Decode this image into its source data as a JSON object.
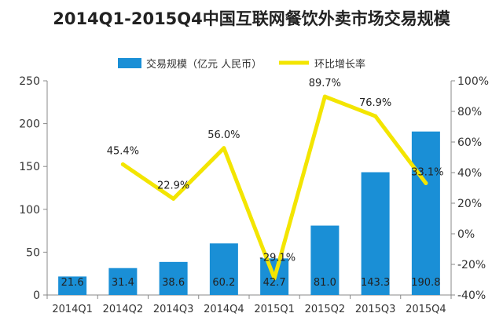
{
  "chart_data": {
    "type": "bar",
    "title": "2014Q1-2015Q4中国互联网餐饮外卖市场交易规模",
    "categories": [
      "2014Q1",
      "2014Q2",
      "2014Q3",
      "2014Q4",
      "2015Q1",
      "2015Q2",
      "2015Q3",
      "2015Q4"
    ],
    "series": [
      {
        "name": "交易规模（亿元 人民币）",
        "type": "bar",
        "axis": "left",
        "values": [
          21.6,
          31.4,
          38.6,
          60.2,
          42.7,
          81.0,
          143.3,
          190.8
        ],
        "labels": [
          "21.6",
          "31.4",
          "38.6",
          "60.2",
          "42.7",
          "81.0",
          "143.3",
          "190.8"
        ],
        "color": "#1a8fd6"
      },
      {
        "name": "环比增长率",
        "type": "line",
        "axis": "right",
        "values": [
          null,
          45.4,
          22.9,
          56.0,
          -29.1,
          89.7,
          76.9,
          33.1
        ],
        "labels": [
          "",
          "45.4%",
          "22.9%",
          "56.0%",
          "-29.1%",
          "89.7%",
          "76.9%",
          "33.1%"
        ],
        "color": "#f3e500"
      }
    ],
    "y_left": {
      "min": 0,
      "max": 250,
      "ticks": [
        "0",
        "50",
        "100",
        "150",
        "200",
        "250"
      ]
    },
    "y_right": {
      "min": -40,
      "max": 100,
      "ticks": [
        "-40%",
        "-20%",
        "0%",
        "20%",
        "40%",
        "60%",
        "80%",
        "100%"
      ]
    },
    "grid": false,
    "legend": "top-center"
  }
}
